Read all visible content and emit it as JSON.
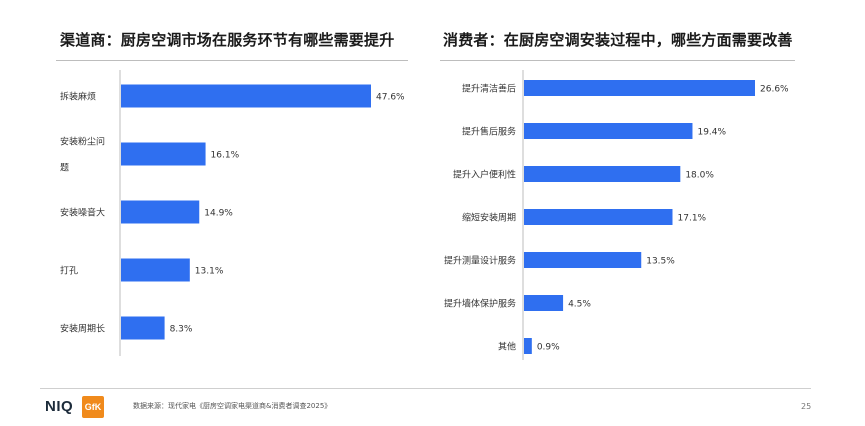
{
  "chart_data": [
    {
      "type": "bar",
      "orientation": "horizontal",
      "title": "渠道商：厨房空调市场在服务环节有哪些需要提升",
      "categories": [
        "拆装麻烦",
        "安装粉尘问题",
        "安装噪音大",
        "打孔",
        "安装周期长"
      ],
      "category_lines": [
        [
          "拆装麻烦"
        ],
        [
          "安装粉尘问",
          "题"
        ],
        [
          "安装噪音大"
        ],
        [
          "打孔"
        ],
        [
          "安装周期长"
        ]
      ],
      "values": [
        47.6,
        16.1,
        14.9,
        13.1,
        8.3
      ],
      "value_labels": [
        "47.6%",
        "16.1%",
        "14.9%",
        "13.1%",
        "8.3%"
      ],
      "unit": "%",
      "color": "#2f6ff0"
    },
    {
      "type": "bar",
      "orientation": "horizontal",
      "title": "消费者：在厨房空调安装过程中，哪些方面需要改善",
      "categories": [
        "提升清洁善后",
        "提升售后服务",
        "提升入户便利性",
        "缩短安装周期",
        "提升测量设计服务",
        "提升墙体保护服务",
        "其他"
      ],
      "category_lines": [
        [
          "提升清洁善后"
        ],
        [
          "提升售后服务"
        ],
        [
          "提升入户便利性"
        ],
        [
          "缩短安装周期"
        ],
        [
          "提升测量设计服务"
        ],
        [
          "提升墙体保护服务"
        ],
        [
          "其他"
        ]
      ],
      "values": [
        26.6,
        19.4,
        18.0,
        17.1,
        13.5,
        4.5,
        0.9
      ],
      "value_labels": [
        "26.6%",
        "19.4%",
        "18.0%",
        "17.1%",
        "13.5%",
        "4.5%",
        "0.9%"
      ],
      "unit": "%",
      "color": "#2f6ff0"
    }
  ],
  "footer": {
    "logo_niq": "NIQ",
    "logo_gfk": "GfK",
    "source": "数据来源：现代家电《厨房空调家电渠道商&消费者调查2025》",
    "page_number": "25"
  }
}
